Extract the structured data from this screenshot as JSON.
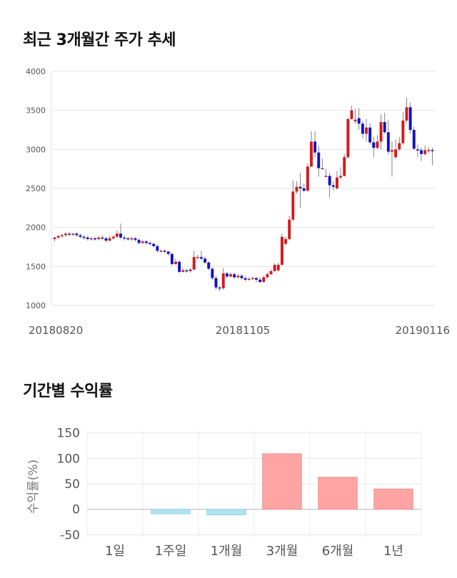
{
  "sections": {
    "price_title": "최근 3개월간 주가 추세",
    "returns_title": "기간별 수익률"
  },
  "chart_data": [
    {
      "type": "candlestick",
      "title": "최근 3개월간 주가 추세",
      "ylim": [
        1000,
        4000
      ],
      "yticks": [
        "4000",
        "3500",
        "3000",
        "2500",
        "2000",
        "1500",
        "1000"
      ],
      "ytick_values": [
        4000,
        3500,
        3000,
        2500,
        2000,
        1500,
        1000
      ],
      "xtick_labels": [
        "20180820",
        "20181105",
        "20190116"
      ],
      "grid": true,
      "colors": {
        "up": "#d7191c",
        "down": "#1010c8",
        "wick": "#666666"
      },
      "candles": [
        [
          1850,
          1870,
          1820,
          1880
        ],
        [
          1870,
          1890,
          1850,
          1900
        ],
        [
          1890,
          1900,
          1870,
          1920
        ],
        [
          1900,
          1920,
          1880,
          1940
        ],
        [
          1920,
          1910,
          1890,
          1940
        ],
        [
          1910,
          1920,
          1890,
          1930
        ],
        [
          1920,
          1900,
          1880,
          1940
        ],
        [
          1900,
          1880,
          1860,
          1920
        ],
        [
          1880,
          1870,
          1840,
          1900
        ],
        [
          1870,
          1850,
          1830,
          1890
        ],
        [
          1850,
          1860,
          1830,
          1880
        ],
        [
          1860,
          1850,
          1830,
          1880
        ],
        [
          1850,
          1870,
          1830,
          1890
        ],
        [
          1870,
          1860,
          1840,
          1900
        ],
        [
          1860,
          1830,
          1810,
          1880
        ],
        [
          1830,
          1860,
          1820,
          1890
        ],
        [
          1860,
          1880,
          1840,
          1900
        ],
        [
          1880,
          1920,
          1860,
          1960
        ],
        [
          1920,
          1870,
          1850,
          2050
        ],
        [
          1870,
          1860,
          1830,
          1900
        ],
        [
          1860,
          1850,
          1830,
          1880
        ],
        [
          1850,
          1860,
          1830,
          1880
        ],
        [
          1860,
          1840,
          1820,
          1880
        ],
        [
          1840,
          1800,
          1780,
          1860
        ],
        [
          1800,
          1820,
          1790,
          1840
        ],
        [
          1820,
          1800,
          1780,
          1840
        ],
        [
          1800,
          1790,
          1770,
          1820
        ],
        [
          1790,
          1760,
          1740,
          1800
        ],
        [
          1760,
          1700,
          1680,
          1780
        ],
        [
          1700,
          1700,
          1680,
          1720
        ],
        [
          1700,
          1690,
          1670,
          1720
        ],
        [
          1690,
          1660,
          1640,
          1700
        ],
        [
          1660,
          1530,
          1510,
          1680
        ],
        [
          1530,
          1560,
          1520,
          1600
        ],
        [
          1560,
          1430,
          1410,
          1580
        ],
        [
          1430,
          1450,
          1420,
          1480
        ],
        [
          1450,
          1440,
          1420,
          1470
        ],
        [
          1440,
          1460,
          1420,
          1480
        ],
        [
          1460,
          1620,
          1450,
          1700
        ],
        [
          1620,
          1620,
          1600,
          1650
        ],
        [
          1620,
          1600,
          1580,
          1700
        ],
        [
          1600,
          1550,
          1530,
          1620
        ],
        [
          1550,
          1470,
          1450,
          1570
        ],
        [
          1470,
          1350,
          1330,
          1490
        ],
        [
          1350,
          1230,
          1200,
          1380
        ],
        [
          1230,
          1220,
          1180,
          1250
        ],
        [
          1220,
          1410,
          1200,
          1480
        ],
        [
          1410,
          1370,
          1350,
          1430
        ],
        [
          1370,
          1400,
          1360,
          1420
        ],
        [
          1400,
          1360,
          1340,
          1420
        ],
        [
          1360,
          1380,
          1350,
          1400
        ],
        [
          1380,
          1350,
          1330,
          1400
        ],
        [
          1350,
          1330,
          1310,
          1370
        ],
        [
          1330,
          1340,
          1320,
          1360
        ],
        [
          1340,
          1350,
          1330,
          1370
        ],
        [
          1350,
          1330,
          1300,
          1370
        ],
        [
          1330,
          1300,
          1290,
          1360
        ],
        [
          1300,
          1360,
          1290,
          1380
        ],
        [
          1360,
          1400,
          1350,
          1420
        ],
        [
          1400,
          1440,
          1390,
          1460
        ],
        [
          1440,
          1520,
          1430,
          1540
        ],
        [
          1450,
          1520,
          1430,
          1550
        ],
        [
          1520,
          1880,
          1510,
          1920
        ],
        [
          1790,
          1850,
          1770,
          1880
        ],
        [
          1850,
          2100,
          1840,
          2150
        ],
        [
          2100,
          2460,
          2080,
          2600
        ],
        [
          2460,
          2520,
          2430,
          2590
        ],
        [
          2520,
          2500,
          2250,
          2700
        ],
        [
          2500,
          2470,
          2450,
          2560
        ],
        [
          2470,
          2780,
          2460,
          2820
        ],
        [
          2780,
          3100,
          2770,
          3230
        ],
        [
          3100,
          2960,
          2900,
          3230
        ],
        [
          2960,
          2760,
          2650,
          3050
        ],
        [
          2760,
          2760,
          2740,
          2880
        ],
        [
          2660,
          2660,
          2650,
          2750
        ],
        [
          2660,
          2540,
          2380,
          2700
        ],
        [
          2540,
          2520,
          2470,
          2590
        ],
        [
          2500,
          2640,
          2480,
          2720
        ],
        [
          2640,
          2660,
          2620,
          2770
        ],
        [
          2660,
          2900,
          2650,
          2940
        ],
        [
          2900,
          3390,
          2880,
          3400
        ],
        [
          3390,
          3500,
          3380,
          3560
        ],
        [
          3360,
          3380,
          3330,
          3520
        ],
        [
          3400,
          3330,
          3250,
          3530
        ],
        [
          3330,
          3200,
          3140,
          3360
        ],
        [
          3200,
          3280,
          3100,
          3390
        ],
        [
          3280,
          3090,
          3060,
          3330
        ],
        [
          3090,
          3020,
          2900,
          3160
        ],
        [
          3020,
          3100,
          3000,
          3180
        ],
        [
          3100,
          3350,
          3000,
          3450
        ],
        [
          3350,
          3220,
          3200,
          3470
        ],
        [
          3220,
          2970,
          2930,
          3380
        ],
        [
          2970,
          2990,
          2650,
          3100
        ],
        [
          2900,
          3000,
          2880,
          3130
        ],
        [
          3000,
          3080,
          2980,
          3160
        ],
        [
          3080,
          3370,
          3060,
          3480
        ],
        [
          3370,
          3540,
          3340,
          3660
        ],
        [
          3540,
          3250,
          3200,
          3600
        ],
        [
          3250,
          3010,
          2990,
          3290
        ],
        [
          3000,
          2990,
          2900,
          3060
        ],
        [
          2990,
          2940,
          2850,
          3020
        ],
        [
          2940,
          2990,
          2920,
          3050
        ],
        [
          2990,
          2990,
          2960,
          3030
        ],
        [
          2990,
          2980,
          2800,
          3020
        ]
      ]
    },
    {
      "type": "bar",
      "title": "기간별 수익률",
      "ylabel": "수익률(%)",
      "ylim": [
        -55,
        155
      ],
      "yticks": [
        "150",
        "100",
        "50",
        "0",
        "-50"
      ],
      "ytick_values": [
        150,
        100,
        50,
        0,
        -50
      ],
      "categories": [
        "1일",
        "1주일",
        "1개월",
        "3개월",
        "6개월",
        "1년"
      ],
      "values": [
        0,
        -9,
        -11,
        109,
        63,
        40
      ],
      "grid": true,
      "colors": {
        "positive": "#ffa3a3",
        "negative": "#aee3ef"
      }
    }
  ]
}
